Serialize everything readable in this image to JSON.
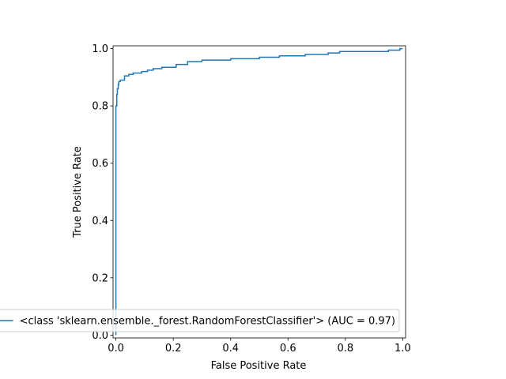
{
  "chart_data": {
    "type": "line",
    "title": "",
    "xlabel": "False Positive Rate",
    "ylabel": "True Positive Rate",
    "xlim": [
      -0.01,
      1.01
    ],
    "ylim": [
      -0.01,
      1.01
    ],
    "xticks": [
      0.0,
      0.2,
      0.4,
      0.6,
      0.8,
      1.0
    ],
    "xtick_labels": [
      "0.0",
      "0.2",
      "0.4",
      "0.6",
      "0.8",
      "1.0"
    ],
    "yticks": [
      0.0,
      0.2,
      0.4,
      0.6,
      0.8,
      1.0
    ],
    "ytick_labels": [
      "0.0",
      "0.2",
      "0.4",
      "0.6",
      "0.8",
      "1.0"
    ],
    "grid": false,
    "legend_position": "lower-right",
    "series": [
      {
        "name": "<class 'sklearn.ensemble._forest.RandomForestClassifier'> (AUC = 0.97)",
        "color": "#1f77b4",
        "step": true,
        "x": [
          0.0,
          0.0,
          0.003,
          0.003,
          0.005,
          0.005,
          0.008,
          0.008,
          0.01,
          0.01,
          0.015,
          0.015,
          0.03,
          0.03,
          0.045,
          0.045,
          0.06,
          0.06,
          0.09,
          0.09,
          0.11,
          0.11,
          0.13,
          0.13,
          0.16,
          0.16,
          0.21,
          0.21,
          0.25,
          0.25,
          0.3,
          0.3,
          0.4,
          0.4,
          0.5,
          0.5,
          0.57,
          0.57,
          0.66,
          0.66,
          0.74,
          0.74,
          0.78,
          0.78,
          0.95,
          0.95,
          0.99,
          0.99,
          1.0
        ],
        "y": [
          0.0,
          0.8,
          0.8,
          0.84,
          0.84,
          0.86,
          0.86,
          0.875,
          0.875,
          0.885,
          0.885,
          0.89,
          0.89,
          0.905,
          0.905,
          0.91,
          0.91,
          0.915,
          0.915,
          0.92,
          0.92,
          0.925,
          0.925,
          0.93,
          0.93,
          0.935,
          0.935,
          0.945,
          0.945,
          0.955,
          0.955,
          0.96,
          0.96,
          0.965,
          0.965,
          0.97,
          0.97,
          0.975,
          0.975,
          0.98,
          0.98,
          0.985,
          0.985,
          0.99,
          0.99,
          0.995,
          0.995,
          1.0,
          1.0
        ]
      }
    ]
  }
}
